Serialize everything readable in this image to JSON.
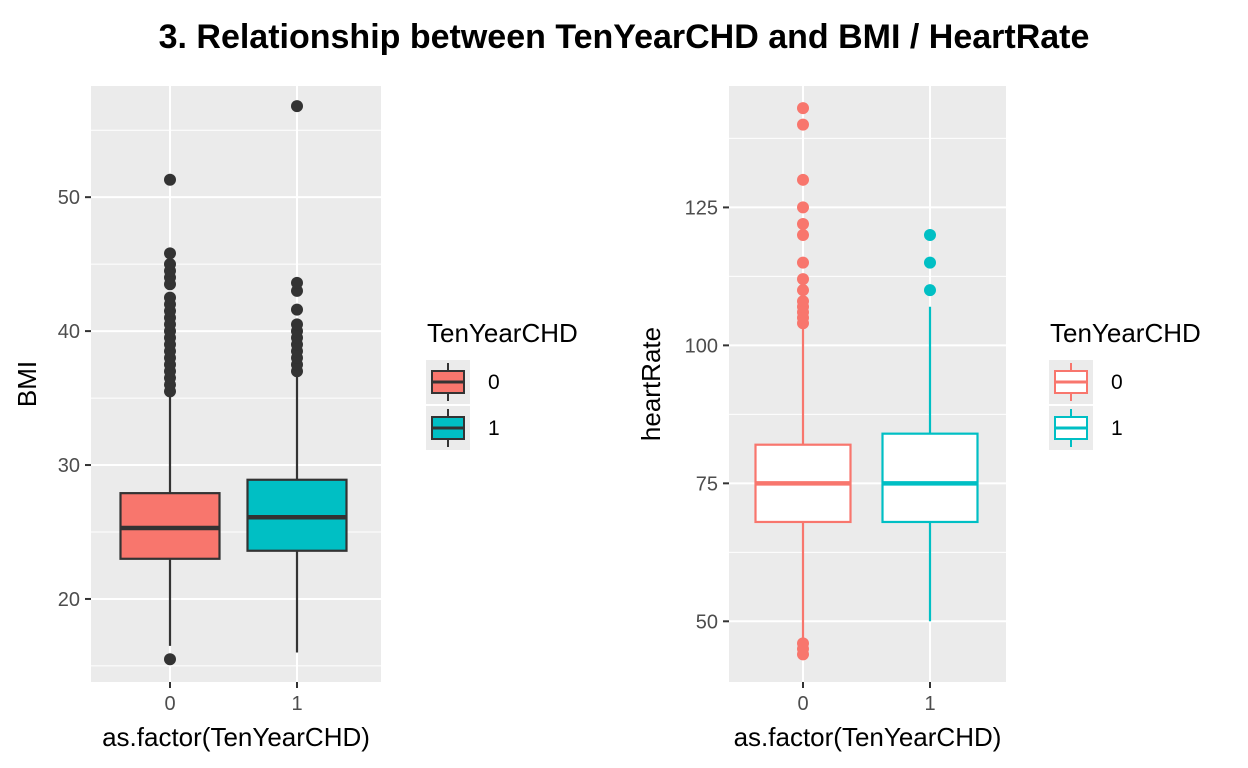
{
  "title": "3. Relationship between TenYearCHD and BMI / HeartRate",
  "chart_data": [
    {
      "type": "boxplot",
      "title": "",
      "xlabel": "as.factor(TenYearCHD)",
      "ylabel": "BMI",
      "categories": [
        "0",
        "1"
      ],
      "ylim": [
        13.8,
        58.3
      ],
      "yticks": [
        20,
        30,
        40,
        50
      ],
      "grid": true,
      "fill_by_group": true,
      "legend": {
        "title": "TenYearCHD",
        "entries": [
          "0",
          "1"
        ],
        "position": "right"
      },
      "colors": {
        "0": "#F8766D",
        "1": "#00BFC4",
        "line": "#333333",
        "outlier": "#333333",
        "panel": "#EBEBEB",
        "grid": "#FFFFFF"
      },
      "boxes": [
        {
          "category": "0",
          "whisker_low": 16.5,
          "q1": 23.0,
          "median": 25.3,
          "q3": 27.9,
          "whisker_high": 35.2,
          "outliers": [
            15.5,
            35.5,
            36.0,
            36.5,
            37.0,
            37.5,
            38.0,
            38.5,
            39.0,
            39.5,
            40.0,
            40.5,
            41.0,
            41.5,
            42.0,
            42.5,
            43.5,
            44.0,
            44.5,
            45.0,
            45.8,
            51.3
          ]
        },
        {
          "category": "1",
          "whisker_low": 16.0,
          "q1": 23.6,
          "median": 26.1,
          "q3": 28.9,
          "whisker_high": 36.8,
          "outliers": [
            37.0,
            37.5,
            38.0,
            38.5,
            39.0,
            39.5,
            40.0,
            40.5,
            41.6,
            43.0,
            43.6,
            56.8
          ]
        }
      ]
    },
    {
      "type": "boxplot",
      "title": "",
      "xlabel": "as.factor(TenYearCHD)",
      "ylabel": "heartRate",
      "categories": [
        "0",
        "1"
      ],
      "ylim": [
        39,
        147
      ],
      "yticks": [
        50,
        75,
        100,
        125
      ],
      "grid": true,
      "fill_by_group": false,
      "legend": {
        "title": "TenYearCHD",
        "entries": [
          "0",
          "1"
        ],
        "position": "right"
      },
      "colors": {
        "0": "#F8766D",
        "1": "#00BFC4",
        "panel": "#EBEBEB",
        "grid": "#FFFFFF"
      },
      "boxes": [
        {
          "category": "0",
          "whisker_low": 46,
          "q1": 68,
          "median": 75,
          "q3": 82,
          "whisker_high": 103,
          "outliers": [
            44,
            45,
            46,
            104,
            105,
            106,
            107,
            108,
            110,
            112,
            115,
            120,
            122,
            125,
            130,
            140,
            143
          ]
        },
        {
          "category": "1",
          "whisker_low": 50,
          "q1": 68,
          "median": 75,
          "q3": 84,
          "whisker_high": 107,
          "outliers": [
            110,
            115,
            120
          ]
        }
      ]
    }
  ]
}
